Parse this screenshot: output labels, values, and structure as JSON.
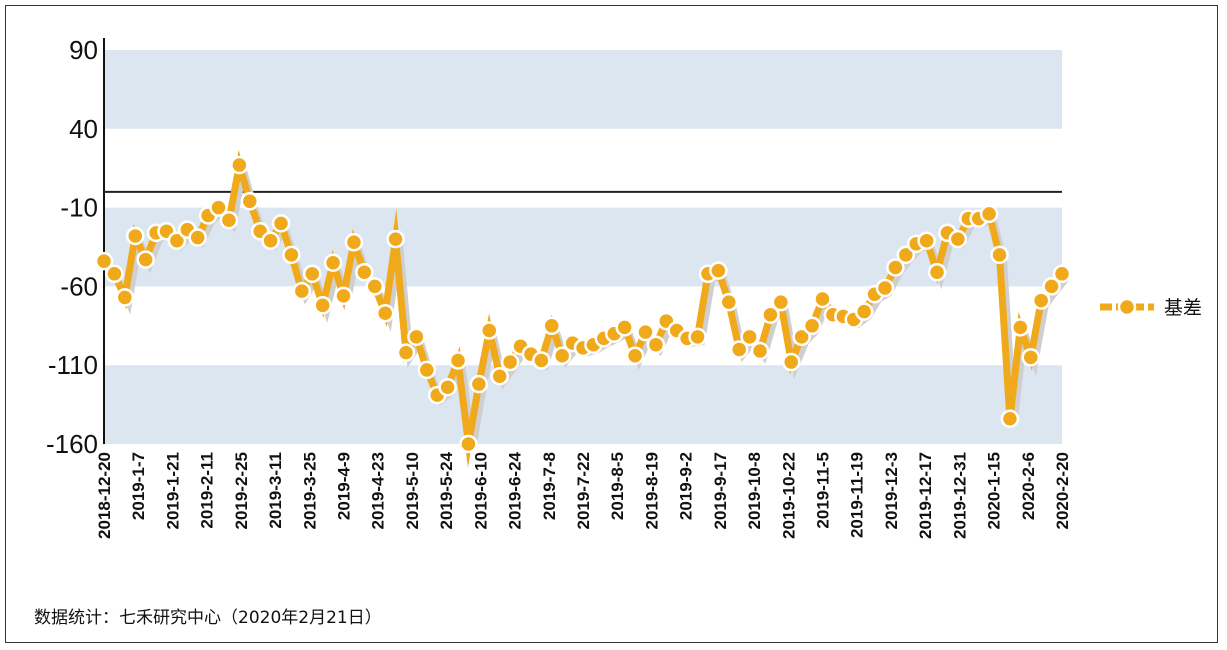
{
  "chart_data": {
    "type": "line",
    "title": "",
    "xlabel": "",
    "ylabel": "",
    "ylim": [
      -160,
      90
    ],
    "yticks": [
      90,
      40,
      -10,
      -60,
      -110,
      -160
    ],
    "ytick_labels": [
      "90",
      "40",
      "-10",
      "-60",
      "-110",
      "-160"
    ],
    "reference_line": 0,
    "x_tick_labels": [
      "2018-12-20",
      "2019-1-7",
      "2019-1-21",
      "2019-2-11",
      "2019-2-25",
      "2019-3-11",
      "2019-3-25",
      "2019-4-9",
      "2019-4-23",
      "2019-5-10",
      "2019-5-24",
      "2019-6-10",
      "2019-6-24",
      "2019-7-8",
      "2019-7-22",
      "2019-8-5",
      "2019-8-19",
      "2019-9-2",
      "2019-9-17",
      "2019-10-8",
      "2019-10-22",
      "2019-11-5",
      "2019-11-19",
      "2019-12-3",
      "2019-12-17",
      "2019-12-31",
      "2020-1-15",
      "2020-2-6",
      "2020-2-20"
    ],
    "legend_position": "right",
    "series": [
      {
        "name": "基差",
        "color": "#F0A91B",
        "values": [
          -44,
          -52,
          -67,
          -28,
          -43,
          -26,
          -25,
          -31,
          -24,
          -29,
          -15,
          -10,
          -18,
          17,
          -6,
          -25,
          -31,
          -20,
          -40,
          -63,
          -52,
          -72,
          -45,
          -66,
          -32,
          -51,
          -60,
          -77,
          -30,
          -102,
          -92,
          -113,
          -129,
          -124,
          -107,
          -160,
          -122,
          -88,
          -117,
          -108,
          -98,
          -103,
          -107,
          -85,
          -104,
          -96,
          -99,
          -97,
          -93,
          -90,
          -86,
          -104,
          -89,
          -97,
          -82,
          -88,
          -93,
          -92,
          -52,
          -50,
          -70,
          -100,
          -92,
          -101,
          -78,
          -70,
          -108,
          -92,
          -85,
          -68,
          -78,
          -79,
          -81,
          -76,
          -65,
          -61,
          -48,
          -40,
          -33,
          -31,
          -51,
          -26,
          -30,
          -17,
          -17,
          -14,
          -40,
          -144,
          -86,
          -105,
          -69,
          -60,
          -52
        ],
        "markers_at_every_point": true
      }
    ]
  },
  "legend": {
    "label": "基差"
  },
  "source_note": "数据统计：七禾研究中心（2020年2月21日）"
}
